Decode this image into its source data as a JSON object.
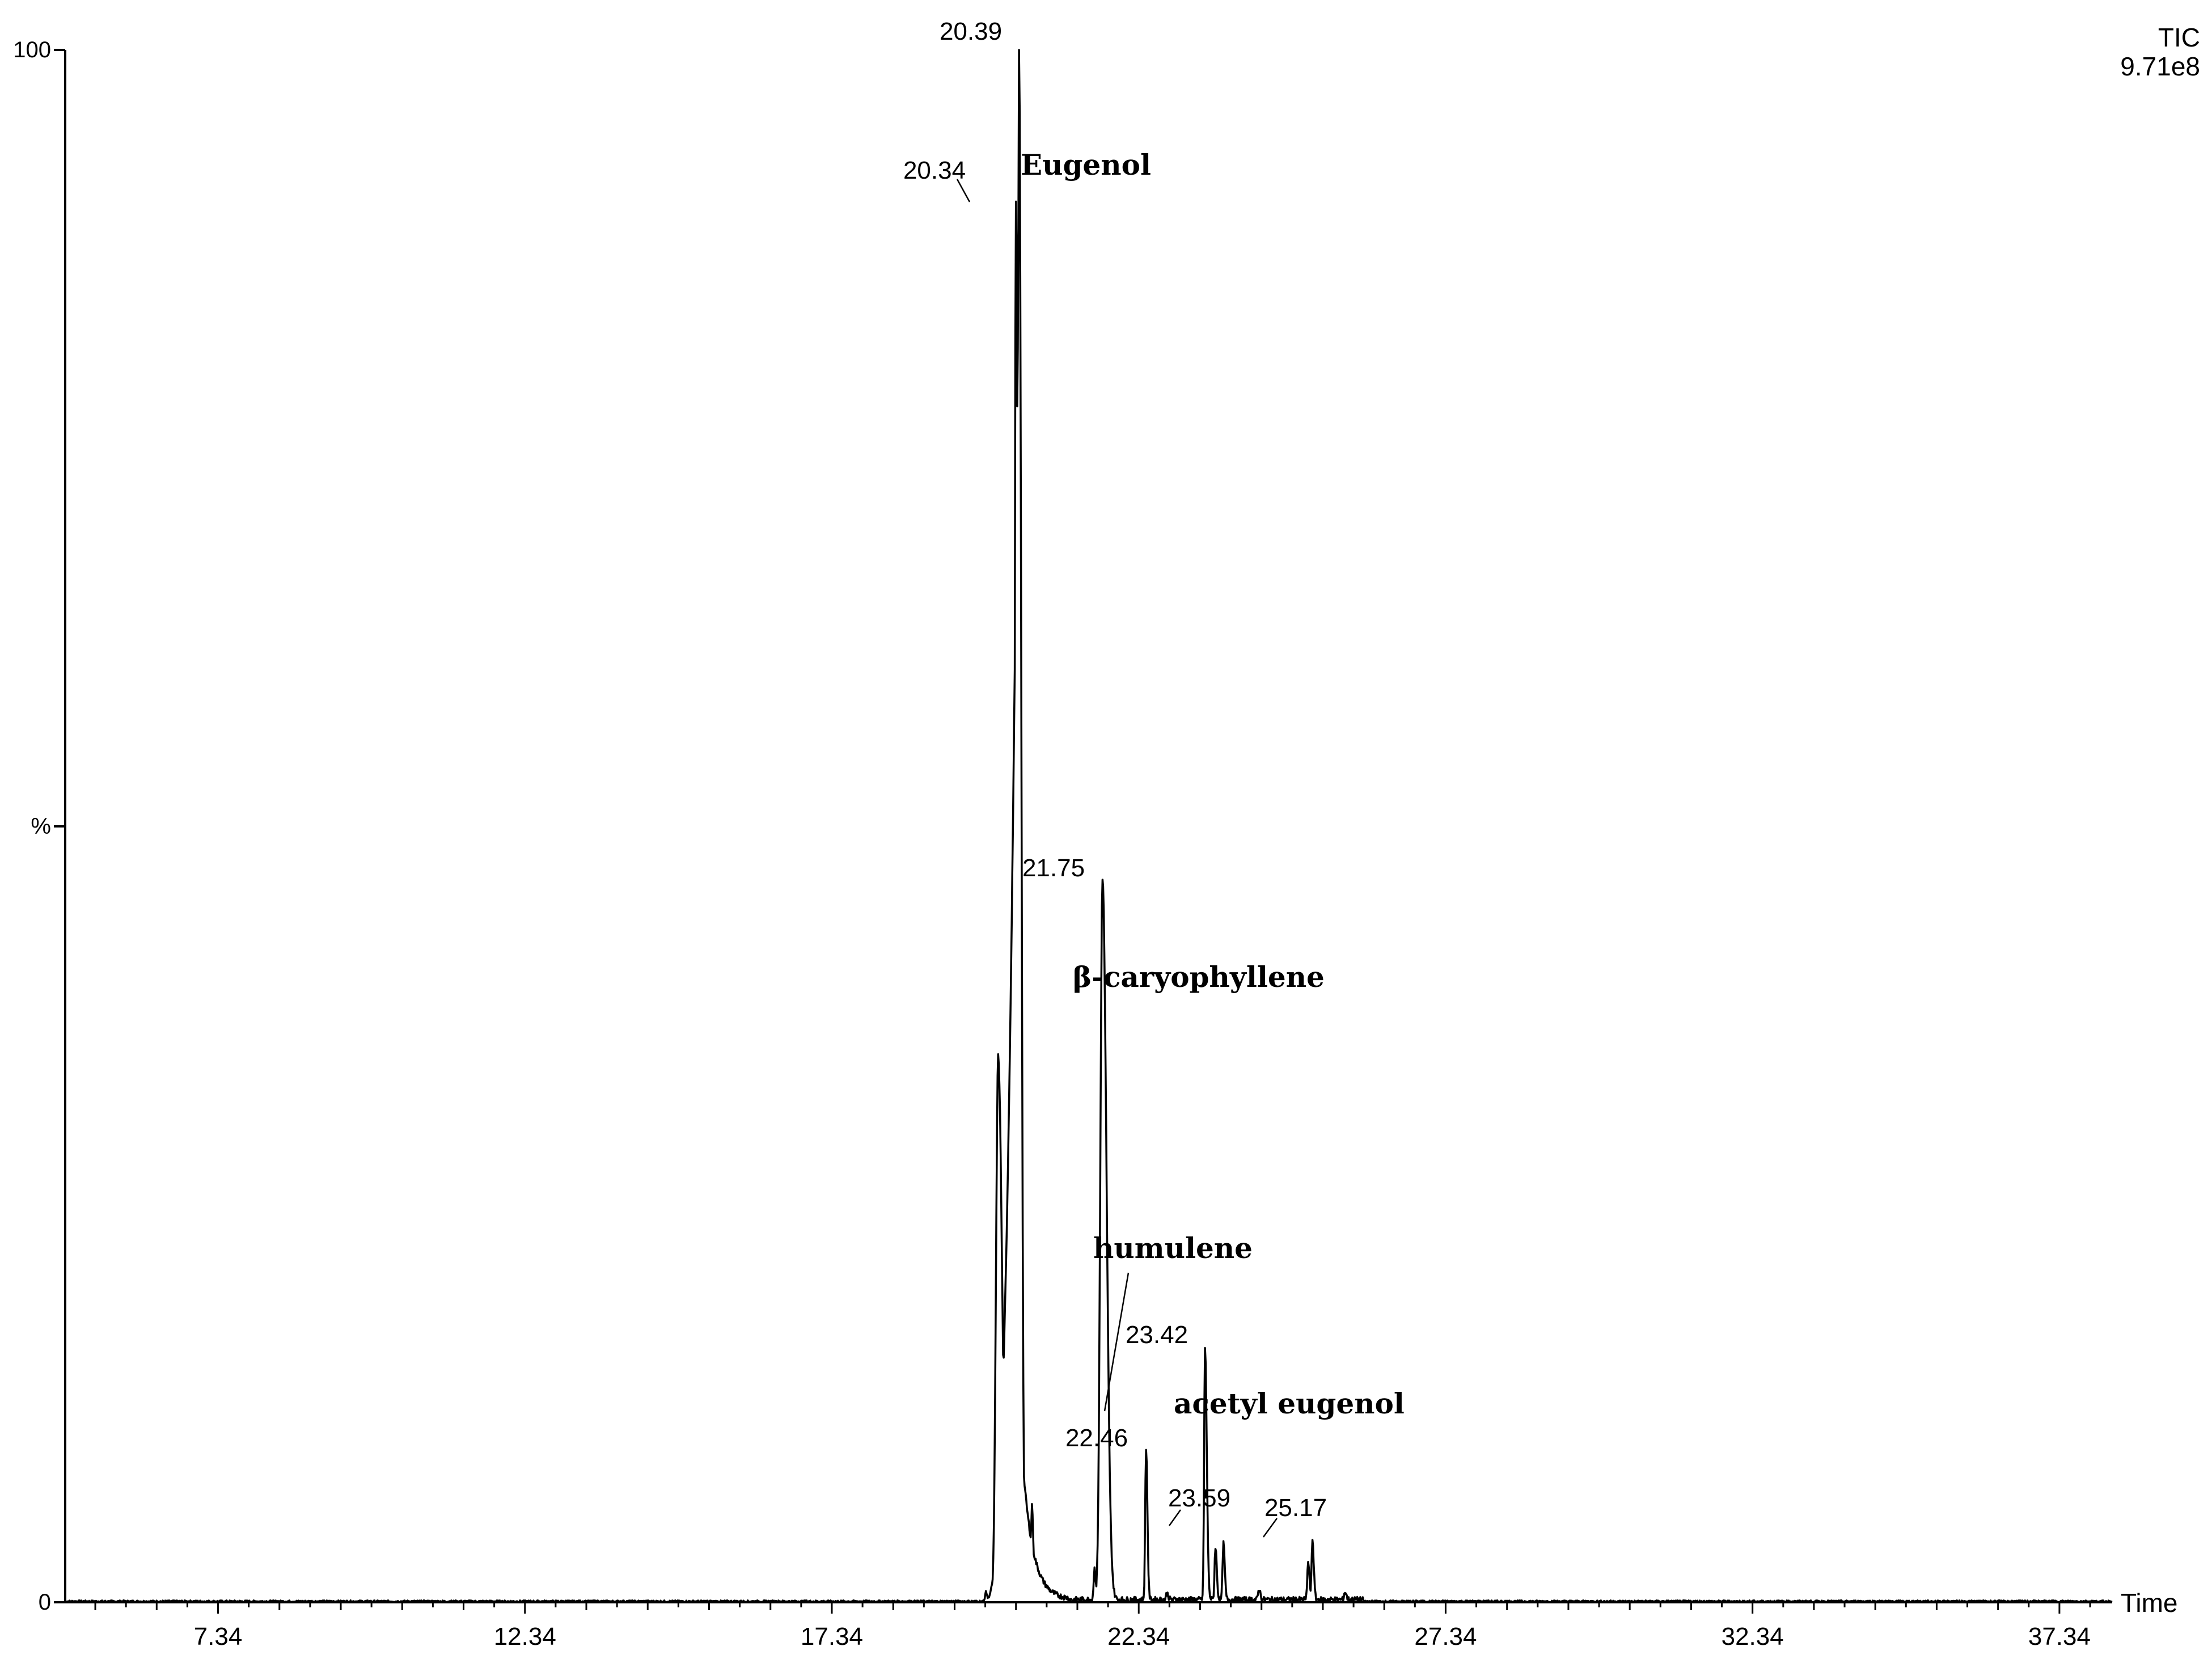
{
  "chart_data": {
    "type": "line",
    "title": "",
    "xlabel": "Time",
    "ylabel": "%",
    "trace_label": "TIC",
    "intensity": "9.71e8",
    "xlim": [
      4.85,
      38.2
    ],
    "ylim": [
      0,
      100
    ],
    "x_ticks": [
      "7.34",
      "12.34",
      "17.34",
      "22.34",
      "27.34",
      "32.34",
      "37.34"
    ],
    "y_ticks": [
      "0",
      "%",
      "100"
    ],
    "peaks": [
      {
        "x": 19.85,
        "y": 0.6
      },
      {
        "x": 20.05,
        "y": 35
      },
      {
        "x": 20.34,
        "y": 90
      },
      {
        "x": 20.39,
        "y": 100
      },
      {
        "x": 20.6,
        "y": 6.2
      },
      {
        "x": 21.62,
        "y": 2.0
      },
      {
        "x": 21.75,
        "y": 46.5
      },
      {
        "x": 22.46,
        "y": 9.8
      },
      {
        "x": 22.8,
        "y": 0.4
      },
      {
        "x": 23.42,
        "y": 16.2
      },
      {
        "x": 23.59,
        "y": 3.4
      },
      {
        "x": 23.72,
        "y": 3.6
      },
      {
        "x": 24.3,
        "y": 0.7
      },
      {
        "x": 25.1,
        "y": 2.4
      },
      {
        "x": 25.17,
        "y": 3.9
      },
      {
        "x": 25.7,
        "y": 0.5
      }
    ],
    "peak_labels": [
      {
        "text": "20.39",
        "x": 20.39,
        "y": 100
      },
      {
        "text": "20.34",
        "x": 20.34,
        "y": 90
      },
      {
        "text": "21.75",
        "x": 21.75,
        "y": 46.5
      },
      {
        "text": "23.42",
        "x": 23.42,
        "y": 16.2
      },
      {
        "text": "22.46",
        "x": 22.46,
        "y": 9.8
      },
      {
        "text": "23.59",
        "x": 23.59,
        "y": 3.4
      },
      {
        "text": "25.17",
        "x": 25.17,
        "y": 3.9
      }
    ],
    "annotations": [
      "Eugenol",
      "β-caryophyllene",
      "humulene",
      "acetyl eugenol"
    ]
  }
}
